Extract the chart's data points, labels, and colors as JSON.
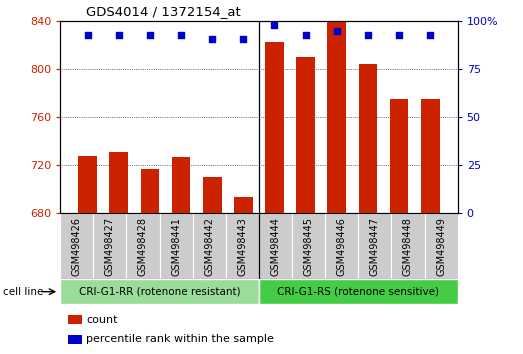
{
  "title": "GDS4014 / 1372154_at",
  "samples": [
    "GSM498426",
    "GSM498427",
    "GSM498428",
    "GSM498441",
    "GSM498442",
    "GSM498443",
    "GSM498444",
    "GSM498445",
    "GSM498446",
    "GSM498447",
    "GSM498448",
    "GSM498449"
  ],
  "counts": [
    728,
    731,
    717,
    727,
    710,
    694,
    823,
    810,
    840,
    804,
    775,
    775
  ],
  "percentile_ranks": [
    93,
    93,
    93,
    93,
    91,
    91,
    98,
    93,
    95,
    93,
    93,
    93
  ],
  "ylim_left": [
    680,
    840
  ],
  "ylim_right": [
    0,
    100
  ],
  "yticks_left": [
    680,
    720,
    760,
    800,
    840
  ],
  "yticks_right": [
    0,
    25,
    50,
    75,
    100
  ],
  "bar_color": "#cc2200",
  "dot_color": "#0000cc",
  "group1_label": "CRI-G1-RR (rotenone resistant)",
  "group2_label": "CRI-G1-RS (rotenone sensitive)",
  "group1_color": "#99dd99",
  "group2_color": "#44cc44",
  "cell_line_label": "cell line",
  "legend_count": "count",
  "legend_percentile": "percentile rank within the sample",
  "n_group1": 6,
  "n_group2": 6,
  "xtick_bg": "#cccccc",
  "xtick_sep": "#ffffff"
}
